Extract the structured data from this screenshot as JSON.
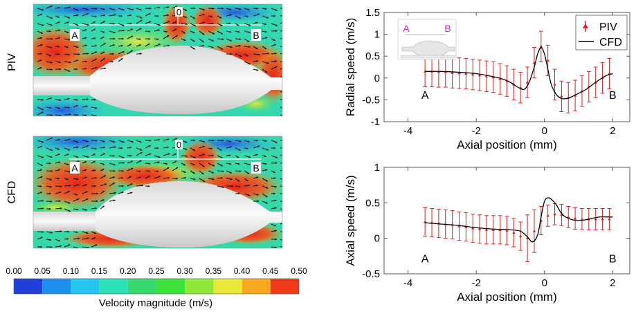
{
  "left": {
    "row_labels": {
      "piv": "PIV",
      "cfd": "CFD"
    },
    "point_labels": {
      "a": "A",
      "b": "B",
      "zero": "0"
    },
    "colorbar": {
      "title": "Velocity magnitude (m/s)",
      "ticks": [
        "0.00",
        "0.05",
        "0.10",
        "0.15",
        "0.20",
        "0.25",
        "0.30",
        "0.35",
        "0.40",
        "0.45",
        "0.50"
      ],
      "colors": [
        "#1f3fd8",
        "#1f8fee",
        "#22c6ee",
        "#2ee0b6",
        "#38d870",
        "#3ae23a",
        "#8fe83a",
        "#e8e83a",
        "#f8a820",
        "#f03a1a"
      ]
    }
  },
  "chart_data": [
    {
      "type": "line",
      "title": "",
      "xlabel": "Axial position (mm)",
      "ylabel": "Radial speed (m/s)",
      "xlim": [
        -4.7,
        2.5
      ],
      "ylim": [
        -1,
        1.5
      ],
      "xticks": [
        "-4",
        "-2",
        "0",
        "2"
      ],
      "xtick_values": [
        -4,
        -2,
        0,
        2
      ],
      "yticks": [
        "1.5",
        "1",
        "0.5",
        "0",
        "-0.5",
        "-1"
      ],
      "ytick_values": [
        1.5,
        1,
        0.5,
        0,
        -0.5,
        -1
      ],
      "annotations": [
        {
          "text": "A",
          "x": -3.5,
          "y": -0.38
        },
        {
          "text": "B",
          "x": 2.0,
          "y": -0.38
        }
      ],
      "legend": {
        "position": "top-right",
        "entries": [
          "PIV",
          "CFD"
        ]
      },
      "inset_labels": [
        "A",
        "B"
      ],
      "series": [
        {
          "name": "PIV",
          "style": "points-with-errorbars",
          "color": "#e02020",
          "x": [
            -3.5,
            -3.3,
            -3.1,
            -2.9,
            -2.7,
            -2.5,
            -2.3,
            -2.1,
            -1.9,
            -1.7,
            -1.5,
            -1.3,
            -1.1,
            -0.9,
            -0.7,
            -0.5,
            -0.3,
            -0.1,
            0.1,
            0.3,
            0.5,
            0.7,
            0.9,
            1.1,
            1.3,
            1.5,
            1.7,
            1.9
          ],
          "y": [
            0.15,
            0.15,
            0.14,
            0.14,
            0.12,
            0.11,
            0.1,
            0.08,
            0.06,
            0.04,
            0.02,
            -0.02,
            -0.07,
            -0.15,
            -0.22,
            -0.1,
            0.35,
            0.72,
            0.4,
            -0.15,
            -0.42,
            -0.45,
            -0.4,
            -0.3,
            -0.2,
            -0.1,
            0.0,
            0.1
          ],
          "error": [
            0.35,
            0.35,
            0.35,
            0.35,
            0.35,
            0.35,
            0.35,
            0.35,
            0.35,
            0.35,
            0.35,
            0.35,
            0.35,
            0.35,
            0.35,
            0.35,
            0.35,
            0.35,
            0.35,
            0.35,
            0.35,
            0.35,
            0.35,
            0.35,
            0.35,
            0.35,
            0.35,
            0.35
          ]
        },
        {
          "name": "CFD",
          "style": "line",
          "color": "#000000",
          "x": [
            -3.5,
            -3.0,
            -2.5,
            -2.0,
            -1.5,
            -1.2,
            -1.0,
            -0.8,
            -0.6,
            -0.45,
            -0.3,
            -0.2,
            -0.1,
            0.0,
            0.1,
            0.2,
            0.35,
            0.5,
            0.65,
            0.8,
            1.0,
            1.2,
            1.5,
            1.8,
            2.0
          ],
          "y": [
            0.15,
            0.15,
            0.13,
            0.1,
            0.03,
            -0.03,
            -0.1,
            -0.2,
            -0.26,
            -0.1,
            0.25,
            0.55,
            0.7,
            0.55,
            0.2,
            -0.15,
            -0.38,
            -0.47,
            -0.47,
            -0.43,
            -0.35,
            -0.27,
            -0.1,
            0.05,
            0.1
          ]
        }
      ]
    },
    {
      "type": "line",
      "title": "",
      "xlabel": "Axial position (mm)",
      "ylabel": "Axial speed (m/s)",
      "xlim": [
        -4.7,
        2.5
      ],
      "ylim": [
        -0.5,
        1
      ],
      "xticks": [
        "-4",
        "-2",
        "0",
        "2"
      ],
      "xtick_values": [
        -4,
        -2,
        0,
        2
      ],
      "yticks": [
        "1",
        "0.5",
        "0",
        "-0.5"
      ],
      "ytick_values": [
        1,
        0.5,
        0,
        -0.5
      ],
      "annotations": [
        {
          "text": "A",
          "x": -3.5,
          "y": -0.28
        },
        {
          "text": "B",
          "x": 2.0,
          "y": -0.28
        }
      ],
      "series": [
        {
          "name": "PIV",
          "style": "points-with-errorbars",
          "color": "#e02020",
          "x": [
            -3.5,
            -3.3,
            -3.1,
            -2.9,
            -2.7,
            -2.5,
            -2.3,
            -2.1,
            -1.9,
            -1.7,
            -1.5,
            -1.3,
            -1.1,
            -0.9,
            -0.7,
            -0.5,
            -0.3,
            -0.1,
            0.1,
            0.3,
            0.5,
            0.7,
            0.9,
            1.1,
            1.3,
            1.5,
            1.7,
            1.9
          ],
          "y": [
            0.23,
            0.22,
            0.21,
            0.2,
            0.19,
            0.17,
            0.16,
            0.14,
            0.13,
            0.12,
            0.12,
            0.12,
            0.11,
            0.08,
            0.03,
            0.0,
            0.1,
            0.25,
            0.32,
            0.34,
            0.33,
            0.3,
            0.28,
            0.27,
            0.27,
            0.27,
            0.27,
            0.27
          ],
          "error": [
            0.2,
            0.2,
            0.2,
            0.2,
            0.2,
            0.2,
            0.2,
            0.2,
            0.2,
            0.2,
            0.2,
            0.2,
            0.2,
            0.2,
            0.2,
            0.33,
            0.3,
            0.2,
            0.15,
            0.15,
            0.15,
            0.15,
            0.15,
            0.15,
            0.15,
            0.15,
            0.15,
            0.15
          ]
        },
        {
          "name": "CFD",
          "style": "line",
          "color": "#000000",
          "x": [
            -3.5,
            -3.0,
            -2.5,
            -2.0,
            -1.5,
            -1.0,
            -0.7,
            -0.5,
            -0.35,
            -0.2,
            -0.1,
            0.0,
            0.1,
            0.2,
            0.35,
            0.5,
            0.7,
            1.0,
            1.3,
            1.6,
            2.0
          ],
          "y": [
            0.22,
            0.2,
            0.18,
            0.15,
            0.13,
            0.12,
            0.1,
            0.02,
            -0.05,
            0.05,
            0.3,
            0.52,
            0.57,
            0.55,
            0.47,
            0.35,
            0.28,
            0.25,
            0.27,
            0.3,
            0.3
          ]
        }
      ]
    }
  ]
}
